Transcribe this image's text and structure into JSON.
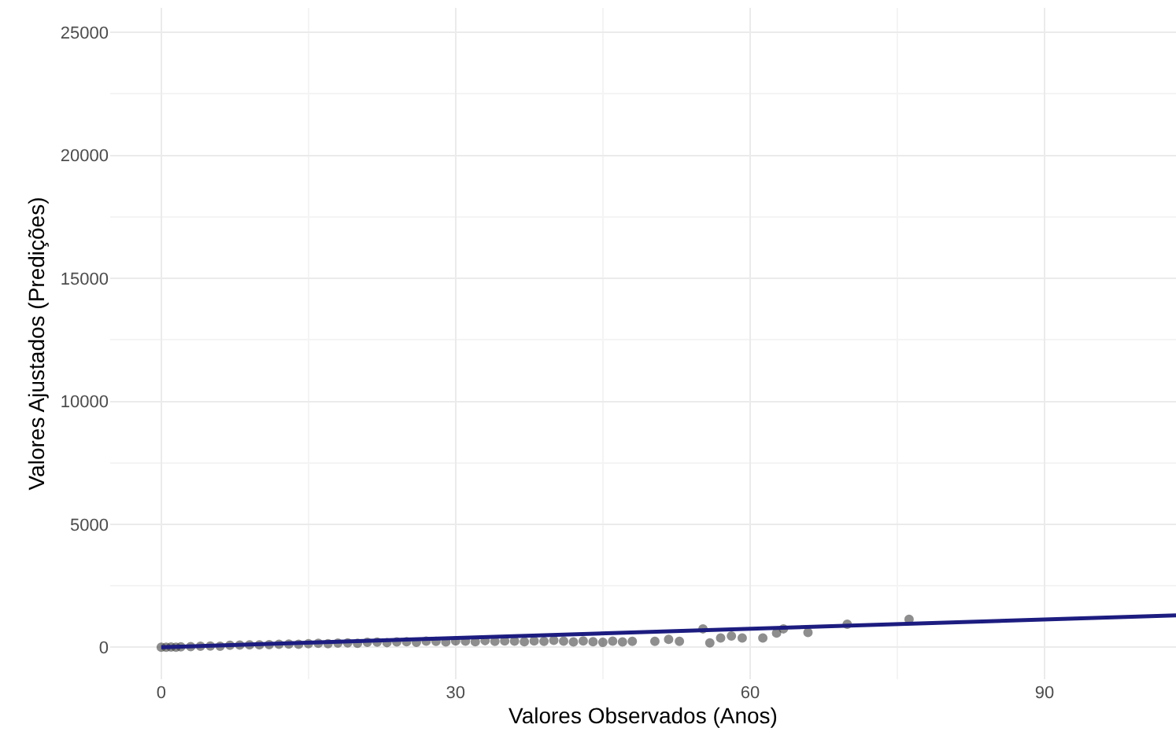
{
  "chart_data": {
    "type": "scatter",
    "xlabel": "Valores Observados (Anos)",
    "ylabel": "Valores Ajustados (Predições)",
    "xlim": [
      -5.2,
      103.4
    ],
    "ylim": [
      -1300,
      26000
    ],
    "xticks": [
      0,
      30,
      60,
      90
    ],
    "yticks": [
      0,
      5000,
      10000,
      15000,
      20000,
      25000
    ],
    "grid": true,
    "legend": false,
    "series": [
      {
        "marker": "circle",
        "color": "#333333",
        "x": [
          0,
          0.5,
          1,
          1.5,
          2,
          3,
          4,
          5,
          6,
          7,
          8,
          9,
          10,
          11,
          12,
          13,
          14,
          15,
          16,
          17,
          18,
          19,
          20,
          21,
          22,
          23,
          24,
          25,
          26,
          27,
          28,
          29,
          30,
          31,
          32,
          33,
          34,
          35,
          36,
          37,
          38,
          39,
          40,
          41,
          42,
          43,
          44,
          45,
          46,
          47,
          48,
          50.3,
          51.7,
          52.8,
          55.2,
          55.9,
          57.0,
          58.1,
          59.2,
          61.3,
          62.7,
          63.4,
          65.9,
          69.9,
          76.2
        ],
        "values": [
          0,
          0,
          10,
          0,
          20,
          30,
          40,
          50,
          40,
          80,
          90,
          100,
          100,
          110,
          120,
          130,
          120,
          150,
          160,
          150,
          170,
          180,
          160,
          200,
          210,
          190,
          220,
          230,
          200,
          250,
          240,
          220,
          260,
          250,
          230,
          270,
          240,
          260,
          250,
          230,
          260,
          240,
          280,
          250,
          220,
          260,
          230,
          200,
          250,
          220,
          240,
          240,
          320,
          240,
          750,
          180,
          380,
          460,
          380,
          380,
          580,
          750,
          600,
          940,
          1140
        ]
      },
      {
        "type": "line",
        "marker": "none",
        "color": "#1c1c80",
        "x": [
          0,
          103.4
        ],
        "values": [
          0,
          1300
        ]
      }
    ]
  }
}
